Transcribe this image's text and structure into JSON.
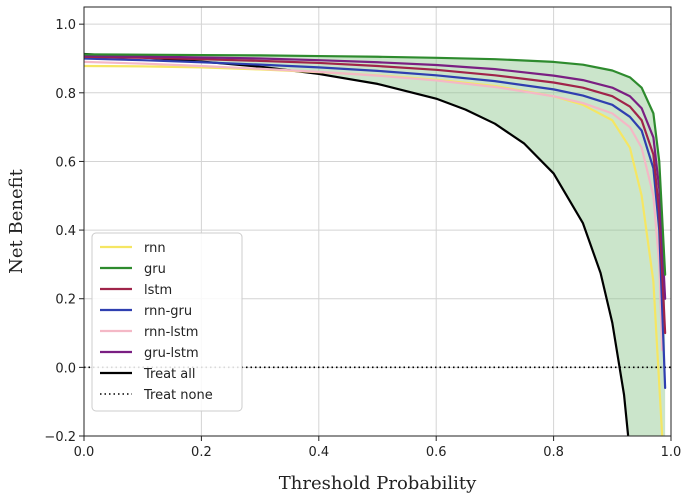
{
  "chart_data": {
    "type": "line",
    "title": "",
    "xlabel": "Threshold Probability",
    "ylabel": "Net Benefit",
    "xlim": [
      0.0,
      1.0
    ],
    "ylim": [
      -0.2,
      1.05
    ],
    "xticks": [
      0.0,
      0.2,
      0.4,
      0.6,
      0.8,
      1.0
    ],
    "xtick_labels": [
      "0.0",
      "0.2",
      "0.4",
      "0.6",
      "0.8",
      "1.0"
    ],
    "yticks": [
      -0.2,
      0.0,
      0.2,
      0.4,
      0.6,
      0.8,
      1.0
    ],
    "ytick_labels": [
      "−0.2",
      "0.0",
      "0.2",
      "0.4",
      "0.6",
      "0.8",
      "1.0"
    ],
    "grid": true,
    "legend_position": "bottom-left",
    "shaded_region": {
      "between": [
        "gru",
        "Treat all"
      ],
      "color": "#8cc68c"
    },
    "series": [
      {
        "name": "rnn",
        "legend_label": "rnn",
        "color": "#f5e663",
        "style": "solid",
        "x": [
          0.0,
          0.1,
          0.2,
          0.3,
          0.4,
          0.5,
          0.6,
          0.7,
          0.8,
          0.85,
          0.9,
          0.93,
          0.95,
          0.97,
          0.98,
          0.985
        ],
        "y": [
          0.878,
          0.877,
          0.874,
          0.868,
          0.86,
          0.851,
          0.838,
          0.82,
          0.79,
          0.765,
          0.72,
          0.64,
          0.5,
          0.25,
          -0.05,
          -0.2
        ]
      },
      {
        "name": "gru",
        "legend_label": "gru",
        "color": "#2e8b2e",
        "style": "solid",
        "x": [
          0.0,
          0.1,
          0.2,
          0.3,
          0.4,
          0.5,
          0.6,
          0.7,
          0.8,
          0.85,
          0.9,
          0.93,
          0.95,
          0.97,
          0.98,
          0.99
        ],
        "y": [
          0.912,
          0.911,
          0.91,
          0.909,
          0.907,
          0.905,
          0.902,
          0.898,
          0.89,
          0.882,
          0.865,
          0.845,
          0.815,
          0.74,
          0.6,
          0.27
        ]
      },
      {
        "name": "lstm",
        "legend_label": "lstm",
        "color": "#a0244a",
        "style": "solid",
        "x": [
          0.0,
          0.1,
          0.2,
          0.3,
          0.4,
          0.5,
          0.6,
          0.7,
          0.8,
          0.85,
          0.9,
          0.93,
          0.95,
          0.97,
          0.98,
          0.99
        ],
        "y": [
          0.905,
          0.902,
          0.898,
          0.893,
          0.887,
          0.878,
          0.867,
          0.851,
          0.83,
          0.815,
          0.79,
          0.76,
          0.72,
          0.62,
          0.45,
          0.1
        ]
      },
      {
        "name": "rnn-gru",
        "legend_label": "rnn-gru",
        "color": "#2f3fb0",
        "style": "solid",
        "x": [
          0.0,
          0.1,
          0.2,
          0.3,
          0.4,
          0.5,
          0.6,
          0.7,
          0.8,
          0.85,
          0.9,
          0.93,
          0.95,
          0.97,
          0.98,
          0.99
        ],
        "y": [
          0.9,
          0.895,
          0.889,
          0.882,
          0.874,
          0.864,
          0.851,
          0.834,
          0.81,
          0.792,
          0.765,
          0.73,
          0.69,
          0.58,
          0.4,
          -0.06
        ]
      },
      {
        "name": "rnn-lstm",
        "legend_label": "rnn-lstm",
        "color": "#f4b8c6",
        "style": "solid",
        "x": [
          0.0,
          0.1,
          0.2,
          0.3,
          0.4,
          0.5,
          0.6,
          0.7,
          0.8,
          0.85,
          0.9,
          0.93,
          0.95,
          0.97,
          0.98,
          0.985
        ],
        "y": [
          0.89,
          0.885,
          0.878,
          0.87,
          0.861,
          0.85,
          0.836,
          0.817,
          0.79,
          0.77,
          0.74,
          0.7,
          0.64,
          0.5,
          0.3,
          0.05
        ]
      },
      {
        "name": "gru-lstm",
        "legend_label": "gru-lstm",
        "color": "#7a1f82",
        "style": "solid",
        "x": [
          0.0,
          0.1,
          0.2,
          0.3,
          0.4,
          0.5,
          0.6,
          0.7,
          0.8,
          0.85,
          0.9,
          0.93,
          0.95,
          0.97,
          0.98,
          0.99
        ],
        "y": [
          0.908,
          0.906,
          0.903,
          0.9,
          0.895,
          0.889,
          0.881,
          0.869,
          0.85,
          0.837,
          0.815,
          0.79,
          0.755,
          0.67,
          0.52,
          0.2
        ]
      },
      {
        "name": "Treat all",
        "legend_label": "Treat all",
        "color": "#000000",
        "style": "solid",
        "x": [
          0.0,
          0.1,
          0.2,
          0.3,
          0.4,
          0.5,
          0.6,
          0.65,
          0.7,
          0.75,
          0.8,
          0.85,
          0.88,
          0.9,
          0.92,
          0.927
        ],
        "y": [
          0.913,
          0.903,
          0.891,
          0.876,
          0.855,
          0.826,
          0.783,
          0.751,
          0.71,
          0.652,
          0.565,
          0.42,
          0.275,
          0.13,
          -0.08,
          -0.2
        ]
      },
      {
        "name": "Treat none",
        "legend_label": "Treat none",
        "color": "#000000",
        "style": "dotted",
        "x": [
          0.0,
          1.0
        ],
        "y": [
          0.0,
          0.0
        ]
      }
    ]
  }
}
